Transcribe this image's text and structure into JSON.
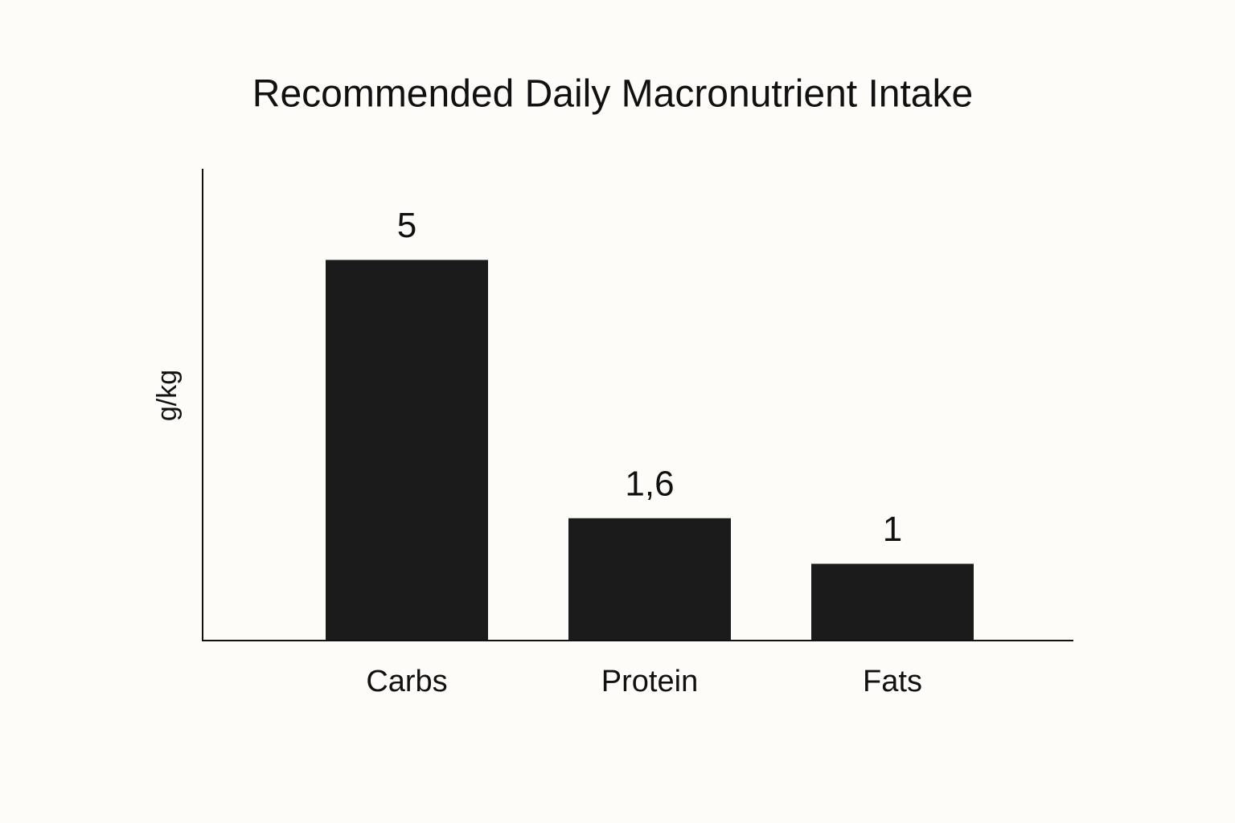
{
  "chart_data": {
    "type": "bar",
    "title": "Recommended Daily Macronutrient Intake",
    "y_label": "g/kg",
    "categories": [
      "Carbs",
      "Protein",
      "Fats"
    ],
    "values": [
      5,
      1.6,
      1
    ],
    "value_labels": [
      "5",
      "1,6",
      "1"
    ],
    "color": "#1b1b1b",
    "ylim": [
      0,
      6.2
    ]
  }
}
